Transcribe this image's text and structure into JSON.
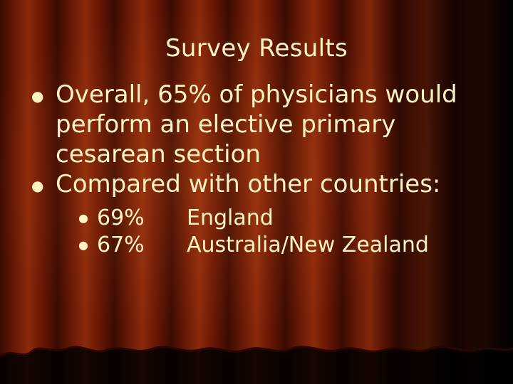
{
  "slide": {
    "title": "Survey Results",
    "bullets": [
      {
        "text": "Overall, 65% of physicians would perform an elective primary cesarean section"
      },
      {
        "text": "Compared with other countries:"
      }
    ],
    "sub_bullets": [
      {
        "pct": "69%",
        "label": "England"
      },
      {
        "pct": "67%",
        "label": "Australia/New Zealand"
      }
    ]
  },
  "colors": {
    "text": "#fff3c2",
    "curtain_dark": "#3a0a02",
    "curtain_light": "#8a2a0c"
  },
  "icons": {
    "bullet": "filled-circle-bullet"
  }
}
